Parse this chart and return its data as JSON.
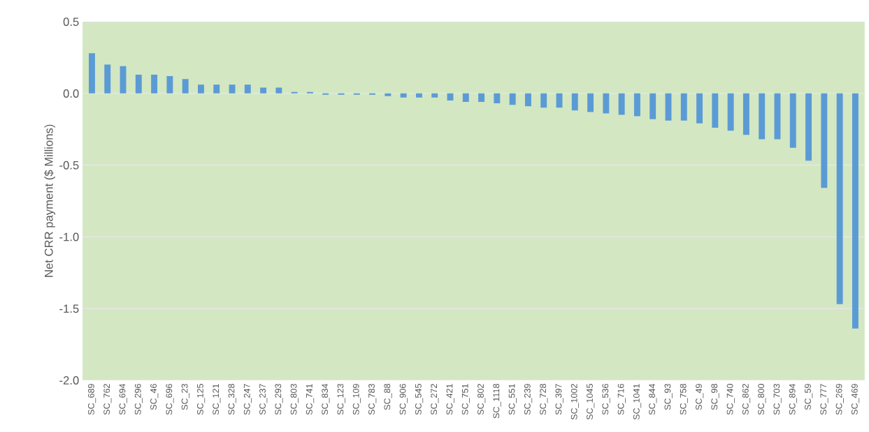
{
  "chart_data": {
    "type": "bar",
    "ylabel": "Net CRR payment ($ Millions)",
    "categories": [
      "SC_689",
      "SC_762",
      "SC_694",
      "SC_296",
      "SC_46",
      "SC_696",
      "SC_23",
      "SC_125",
      "SC_121",
      "SC_328",
      "SC_247",
      "SC_237",
      "SC_293",
      "SC_803",
      "SC_741",
      "SC_834",
      "SC_123",
      "SC_109",
      "SC_783",
      "SC_88",
      "SC_906",
      "SC_545",
      "SC_272",
      "SC_421",
      "SC_751",
      "SC_802",
      "SC_1118",
      "SC_551",
      "SC_239",
      "SC_728",
      "SC_397",
      "SC_1002",
      "SC_1045",
      "SC_536",
      "SC_716",
      "SC_1041",
      "SC_844",
      "SC_93",
      "SC_758",
      "SC_49",
      "SC_98",
      "SC_740",
      "SC_862",
      "SC_800",
      "SC_703",
      "SC_894",
      "SC_59",
      "SC_777",
      "SC_269",
      "SC_469"
    ],
    "values": [
      0.28,
      0.2,
      0.19,
      0.13,
      0.13,
      0.12,
      0.1,
      0.06,
      0.06,
      0.06,
      0.06,
      0.04,
      0.04,
      0.01,
      0.01,
      -0.01,
      -0.01,
      -0.01,
      -0.01,
      -0.02,
      -0.03,
      -0.03,
      -0.03,
      -0.05,
      -0.06,
      -0.06,
      -0.07,
      -0.08,
      -0.09,
      -0.1,
      -0.1,
      -0.12,
      -0.13,
      -0.14,
      -0.15,
      -0.16,
      -0.18,
      -0.19,
      -0.19,
      -0.21,
      -0.24,
      -0.26,
      -0.29,
      -0.32,
      -0.32,
      -0.38,
      -0.47,
      -0.66,
      -1.47,
      -1.64
    ],
    "color": "#5b9bd5",
    "ylim": [
      -2.0,
      0.5
    ],
    "yticks": [
      {
        "value": 0.5,
        "label": "0.5"
      },
      {
        "value": 0,
        "label": "0.0"
      },
      {
        "value": -0.5,
        "label": "-0.5"
      },
      {
        "value": -1.0,
        "label": "-1.0"
      },
      {
        "value": -1.5,
        "label": "-1.5"
      },
      {
        "value": -2.0,
        "label": "-2.0"
      }
    ],
    "grid": "y",
    "legend": false
  }
}
